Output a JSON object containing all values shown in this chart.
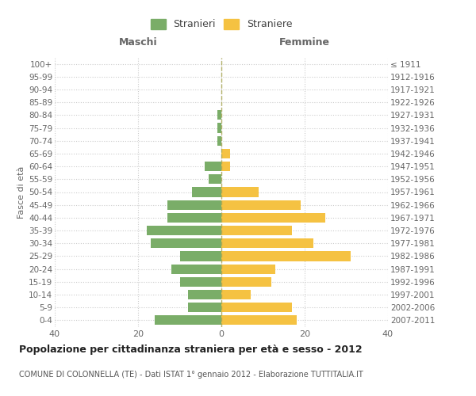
{
  "age_groups": [
    "0-4",
    "5-9",
    "10-14",
    "15-19",
    "20-24",
    "25-29",
    "30-34",
    "35-39",
    "40-44",
    "45-49",
    "50-54",
    "55-59",
    "60-64",
    "65-69",
    "70-74",
    "75-79",
    "80-84",
    "85-89",
    "90-94",
    "95-99",
    "100+"
  ],
  "birth_years": [
    "2007-2011",
    "2002-2006",
    "1997-2001",
    "1992-1996",
    "1987-1991",
    "1982-1986",
    "1977-1981",
    "1972-1976",
    "1967-1971",
    "1962-1966",
    "1957-1961",
    "1952-1956",
    "1947-1951",
    "1942-1946",
    "1937-1941",
    "1932-1936",
    "1927-1931",
    "1922-1926",
    "1917-1921",
    "1912-1916",
    "≤ 1911"
  ],
  "maschi": [
    16,
    8,
    8,
    10,
    12,
    10,
    17,
    18,
    13,
    13,
    7,
    3,
    4,
    0,
    1,
    1,
    1,
    0,
    0,
    0,
    0
  ],
  "femmine": [
    18,
    17,
    7,
    12,
    13,
    31,
    22,
    17,
    25,
    19,
    9,
    0,
    2,
    2,
    0,
    0,
    0,
    0,
    0,
    0,
    0
  ],
  "male_color": "#7aad68",
  "female_color": "#f5c242",
  "grid_color": "#cccccc",
  "title": "Popolazione per cittadinanza straniera per età e sesso - 2012",
  "subtitle": "COMUNE DI COLONNELLA (TE) - Dati ISTAT 1° gennaio 2012 - Elaborazione TUTTITALIA.IT",
  "legend_maschi": "Stranieri",
  "legend_femmine": "Straniere",
  "xlabel_left": "Maschi",
  "xlabel_right": "Femmine",
  "ylabel_left": "Fasce di età",
  "xlim": 40,
  "background_color": "#ffffff"
}
